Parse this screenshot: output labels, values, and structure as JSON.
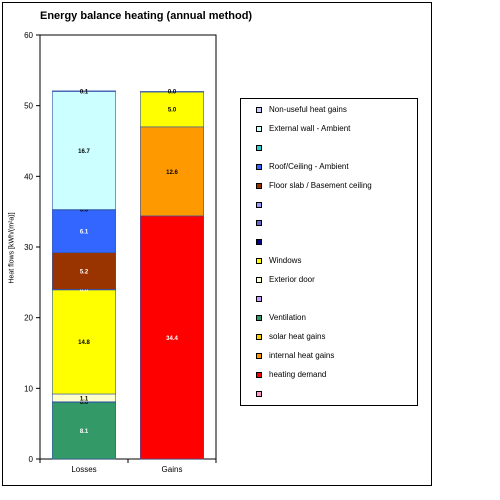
{
  "chart_data": {
    "type": "bar",
    "stacked": true,
    "title": "Energy balance heating (annual method)",
    "ylabel": "Heat flows [kWh/(m²a)]",
    "xlabel": "",
    "ylim": [
      0,
      60
    ],
    "yticks": [
      0,
      10,
      20,
      30,
      40,
      50,
      60
    ],
    "categories": [
      "Losses",
      "Gains"
    ],
    "legend_position": "right",
    "series": [
      {
        "name": "heating demand",
        "color": "#ff0000",
        "values": [
          null,
          34.4
        ],
        "labels": [
          null,
          "34.4"
        ]
      },
      {
        "name": "internal heat gains",
        "color": "#ff9900",
        "values": [
          null,
          12.6
        ],
        "labels": [
          null,
          "12.6"
        ]
      },
      {
        "name": "solar heat gains",
        "color": "#ffff00",
        "values": [
          null,
          5.0
        ],
        "labels": [
          null,
          "5.0"
        ]
      },
      {
        "name": "",
        "color": "#ff99cc",
        "values": [
          null,
          0.0
        ],
        "labels": [
          null,
          "0.0"
        ]
      },
      {
        "name": "Ventilation",
        "color": "#339966",
        "values": [
          8.1,
          null
        ],
        "labels": [
          "8.1",
          null
        ]
      },
      {
        "name": "",
        "color": "#cc99ff",
        "values": [
          0.0,
          null
        ],
        "labels": [
          "0.0",
          null
        ]
      },
      {
        "name": "Exterior door",
        "color": "#ffffcc",
        "values": [
          1.1,
          null
        ],
        "labels": [
          "1.1",
          null
        ]
      },
      {
        "name": "Windows",
        "color": "#ffff00",
        "values": [
          14.8,
          null
        ],
        "labels": [
          "14.8",
          null
        ]
      },
      {
        "name": "",
        "color": "#000080",
        "values": [
          0.0,
          null
        ],
        "labels": [
          "0.0",
          null
        ]
      },
      {
        "name": "Floor slab / Basement ceiling",
        "color": "#993300",
        "values": [
          5.2,
          null
        ],
        "labels": [
          "5.2",
          null
        ]
      },
      {
        "name": "Roof/Ceiling - Ambient",
        "color": "#3366ff",
        "values": [
          6.1,
          null
        ],
        "labels": [
          "6.1",
          null
        ]
      },
      {
        "name": "",
        "color": "#33cccc",
        "values": [
          0.0,
          null
        ],
        "labels": [
          "0.0",
          null
        ]
      },
      {
        "name": "External wall - Ambient",
        "color": "#ccffff",
        "values": [
          16.7,
          null
        ],
        "labels": [
          "16.7",
          null
        ]
      },
      {
        "name": "Non-useful heat gains",
        "color": "#ccccff",
        "values": [
          0.1,
          null
        ],
        "labels": [
          "0.1",
          null
        ]
      }
    ],
    "legend": [
      {
        "label": "Non-useful heat gains",
        "color": "#ccccff"
      },
      {
        "label": "External wall - Ambient",
        "color": "#ccffff"
      },
      {
        "label": "",
        "color": "#33cccc"
      },
      {
        "label": "Roof/Ceiling - Ambient",
        "color": "#3366ff"
      },
      {
        "label": "Floor slab / Basement ceiling",
        "color": "#993300"
      },
      {
        "label": "",
        "color": "#9999ff"
      },
      {
        "label": "",
        "color": "#6666cc"
      },
      {
        "label": "",
        "color": "#000080"
      },
      {
        "label": "Windows",
        "color": "#ffff00"
      },
      {
        "label": "Exterior door",
        "color": "#ffffcc"
      },
      {
        "label": "",
        "color": "#cc99ff"
      },
      {
        "label": "Ventilation",
        "color": "#339966"
      },
      {
        "label": "solar heat gains",
        "color": "#ffcc00"
      },
      {
        "label": "internal heat gains",
        "color": "#ff9900"
      },
      {
        "label": "heating demand",
        "color": "#ff0000"
      },
      {
        "label": "",
        "color": "#ff99cc"
      }
    ]
  }
}
